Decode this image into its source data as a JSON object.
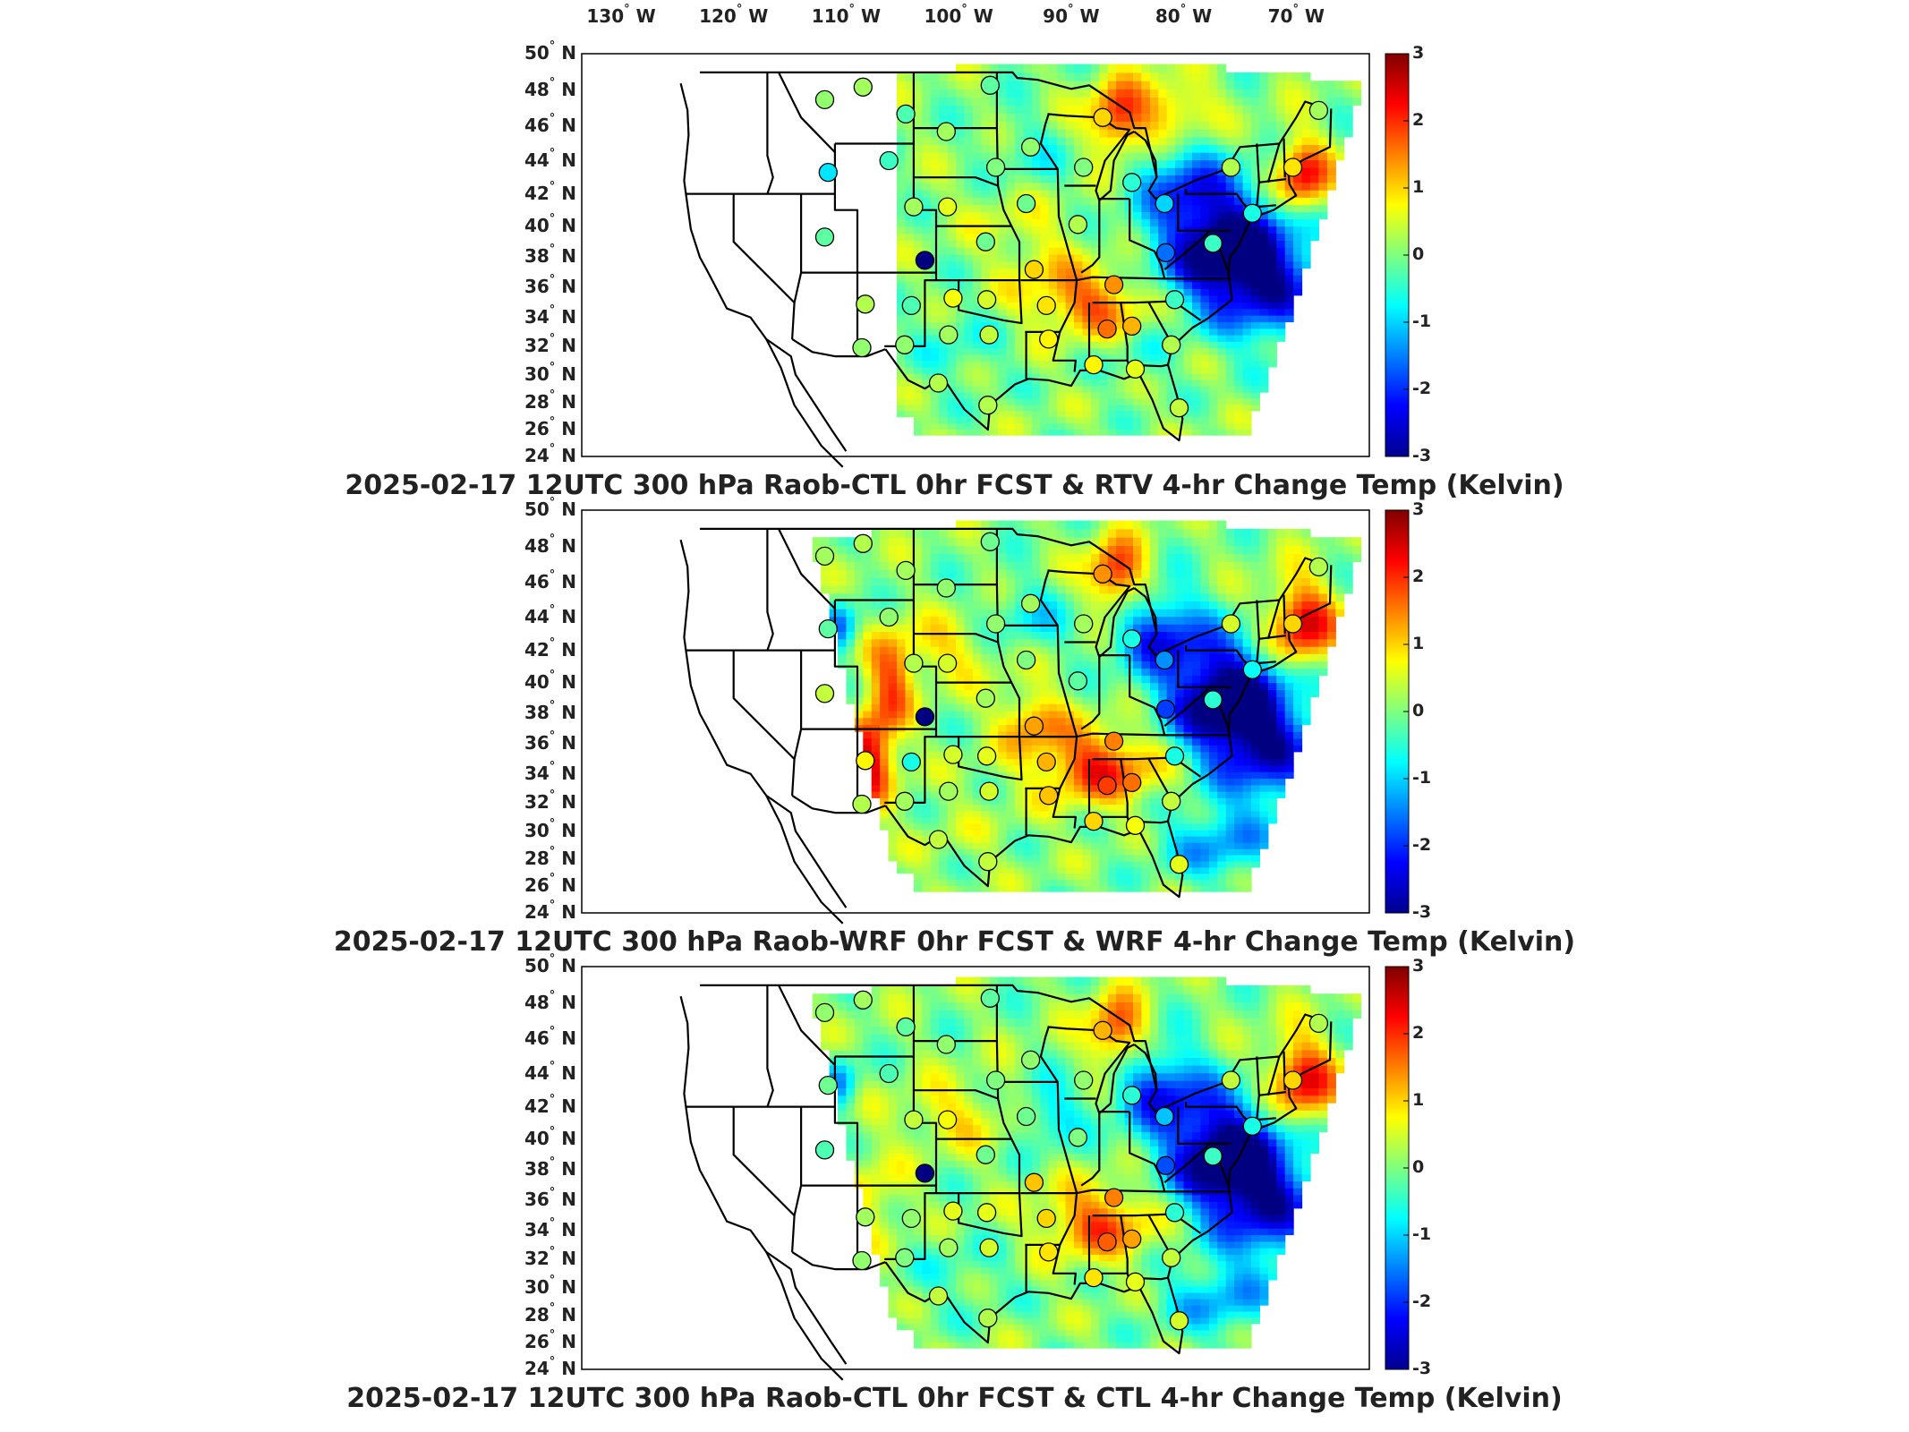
{
  "longitude_labels": [
    {
      "deg": "130",
      "hem": "W"
    },
    {
      "deg": "120",
      "hem": "W"
    },
    {
      "deg": "110",
      "hem": "W"
    },
    {
      "deg": "100",
      "hem": "W"
    },
    {
      "deg": "90",
      "hem": "W"
    },
    {
      "deg": "80",
      "hem": "W"
    },
    {
      "deg": "70",
      "hem": "W"
    }
  ],
  "latitude_labels": [
    "50",
    "48",
    "46",
    "44",
    "42",
    "40",
    "38",
    "36",
    "34",
    "32",
    "30",
    "28",
    "26",
    "24"
  ],
  "latitude_hemisphere": "N",
  "colorbar": {
    "min": -3,
    "max": 3,
    "ticks": [
      "3",
      "2",
      "1",
      "0",
      "-1",
      "-2",
      "-3"
    ],
    "colormap": "jet",
    "units": "Kelvin"
  },
  "panels": [
    {
      "title": "2025-02-17 12UTC 300 hPa Raob-CTL 0hr FCST & RTV 4-hr Change Temp (Kelvin)",
      "field": "RTV",
      "field_extent": "east-of-105W"
    },
    {
      "title": "2025-02-17 12UTC 300 hPa Raob-WRF 0hr FCST & WRF 4-hr Change Temp (Kelvin)",
      "field": "WRF",
      "field_extent": "full-domain"
    },
    {
      "title": "2025-02-17 12UTC 300 hPa Raob-CTL 0hr FCST & CTL 4-hr Change Temp (Kelvin)",
      "field": "CTL",
      "field_extent": "full-domain"
    }
  ],
  "raob_stations": [
    {
      "lon": -111.9,
      "lat": 47.5,
      "v": [
        0.1,
        0.2,
        0.1
      ]
    },
    {
      "lon": -108.5,
      "lat": 48.2,
      "v": [
        0.2,
        0.3,
        0.2
      ]
    },
    {
      "lon": -111.6,
      "lat": 43.3,
      "v": [
        -0.9,
        -0.2,
        -0.1
      ]
    },
    {
      "lon": -111.9,
      "lat": 39.3,
      "v": [
        -0.2,
        0.4,
        -0.3
      ]
    },
    {
      "lon": -108.3,
      "lat": 34.9,
      "v": [
        0.3,
        0.8,
        0.2
      ]
    },
    {
      "lon": -108.6,
      "lat": 31.9,
      "v": [
        0.1,
        0.3,
        0.1
      ]
    },
    {
      "lon": -104.7,
      "lat": 46.7,
      "v": [
        -0.3,
        0.2,
        -0.2
      ]
    },
    {
      "lon": -106.2,
      "lat": 44.0,
      "v": [
        -0.4,
        0.1,
        -0.3
      ]
    },
    {
      "lon": -104.0,
      "lat": 41.2,
      "v": [
        0.2,
        0.3,
        0.4
      ]
    },
    {
      "lon": -103.0,
      "lat": 37.8,
      "v": [
        -3.0,
        -3.0,
        -3.0
      ]
    },
    {
      "lon": -104.2,
      "lat": 34.8,
      "v": [
        -0.3,
        -0.6,
        0.1
      ]
    },
    {
      "lon": -104.8,
      "lat": 32.1,
      "v": [
        0.1,
        0.2,
        0.0
      ]
    },
    {
      "lon": -101.1,
      "lat": 45.7,
      "v": [
        0.2,
        0.1,
        0.1
      ]
    },
    {
      "lon": -101.0,
      "lat": 41.2,
      "v": [
        0.6,
        0.5,
        0.7
      ]
    },
    {
      "lon": -100.5,
      "lat": 35.3,
      "v": [
        0.7,
        0.5,
        0.6
      ]
    },
    {
      "lon": -100.9,
      "lat": 32.8,
      "v": [
        0.2,
        0.2,
        0.2
      ]
    },
    {
      "lon": -101.8,
      "lat": 29.4,
      "v": [
        0.3,
        0.4,
        0.4
      ]
    },
    {
      "lon": -97.2,
      "lat": 48.3,
      "v": [
        -0.2,
        -0.1,
        -0.2
      ]
    },
    {
      "lon": -96.7,
      "lat": 43.6,
      "v": [
        0.0,
        0.1,
        0.0
      ]
    },
    {
      "lon": -97.6,
      "lat": 39.0,
      "v": [
        -0.1,
        0.2,
        -0.1
      ]
    },
    {
      "lon": -97.5,
      "lat": 35.2,
      "v": [
        0.5,
        0.6,
        0.6
      ]
    },
    {
      "lon": -97.3,
      "lat": 32.8,
      "v": [
        0.4,
        0.5,
        0.5
      ]
    },
    {
      "lon": -97.4,
      "lat": 27.8,
      "v": [
        0.3,
        0.4,
        0.3
      ]
    },
    {
      "lon": -93.6,
      "lat": 44.8,
      "v": [
        0.1,
        0.2,
        0.1
      ]
    },
    {
      "lon": -94.0,
      "lat": 41.4,
      "v": [
        -0.1,
        0.0,
        -0.1
      ]
    },
    {
      "lon": -93.3,
      "lat": 37.2,
      "v": [
        1.0,
        1.3,
        1.1
      ]
    },
    {
      "lon": -92.2,
      "lat": 34.8,
      "v": [
        0.9,
        1.2,
        1.0
      ]
    },
    {
      "lon": -92.0,
      "lat": 32.5,
      "v": [
        0.8,
        1.1,
        0.9
      ]
    },
    {
      "lon": -89.4,
      "lat": 40.1,
      "v": [
        0.3,
        -0.2,
        0.0
      ]
    },
    {
      "lon": -88.9,
      "lat": 43.6,
      "v": [
        0.0,
        0.2,
        0.1
      ]
    },
    {
      "lon": -87.2,
      "lat": 46.5,
      "v": [
        1.0,
        1.4,
        1.2
      ]
    },
    {
      "lon": -86.2,
      "lat": 36.2,
      "v": [
        1.4,
        1.5,
        1.5
      ]
    },
    {
      "lon": -86.8,
      "lat": 33.2,
      "v": [
        1.6,
        1.9,
        1.7
      ]
    },
    {
      "lon": -88.0,
      "lat": 30.7,
      "v": [
        0.8,
        1.0,
        0.9
      ]
    },
    {
      "lon": -84.6,
      "lat": 42.7,
      "v": [
        -0.5,
        -0.6,
        -0.5
      ]
    },
    {
      "lon": -84.6,
      "lat": 33.4,
      "v": [
        1.2,
        1.6,
        1.3
      ]
    },
    {
      "lon": -84.3,
      "lat": 30.4,
      "v": [
        0.6,
        0.7,
        0.6
      ]
    },
    {
      "lon": -81.7,
      "lat": 41.4,
      "v": [
        -1.0,
        -1.4,
        -1.1
      ]
    },
    {
      "lon": -81.6,
      "lat": 38.3,
      "v": [
        -1.6,
        -1.9,
        -1.8
      ]
    },
    {
      "lon": -80.8,
      "lat": 35.2,
      "v": [
        -0.4,
        -0.6,
        -0.5
      ]
    },
    {
      "lon": -81.1,
      "lat": 32.1,
      "v": [
        0.3,
        0.4,
        0.4
      ]
    },
    {
      "lon": -80.4,
      "lat": 27.6,
      "v": [
        0.4,
        0.6,
        0.5
      ]
    },
    {
      "lon": -77.4,
      "lat": 38.9,
      "v": [
        -0.4,
        -0.5,
        -0.4
      ]
    },
    {
      "lon": -75.8,
      "lat": 43.6,
      "v": [
        0.3,
        0.5,
        0.4
      ]
    },
    {
      "lon": -73.9,
      "lat": 40.8,
      "v": [
        -0.6,
        -0.7,
        -0.6
      ]
    },
    {
      "lon": -70.3,
      "lat": 43.6,
      "v": [
        0.9,
        1.0,
        1.0
      ]
    },
    {
      "lon": -68.0,
      "lat": 46.9,
      "v": [
        0.2,
        0.3,
        0.3
      ]
    }
  ]
}
